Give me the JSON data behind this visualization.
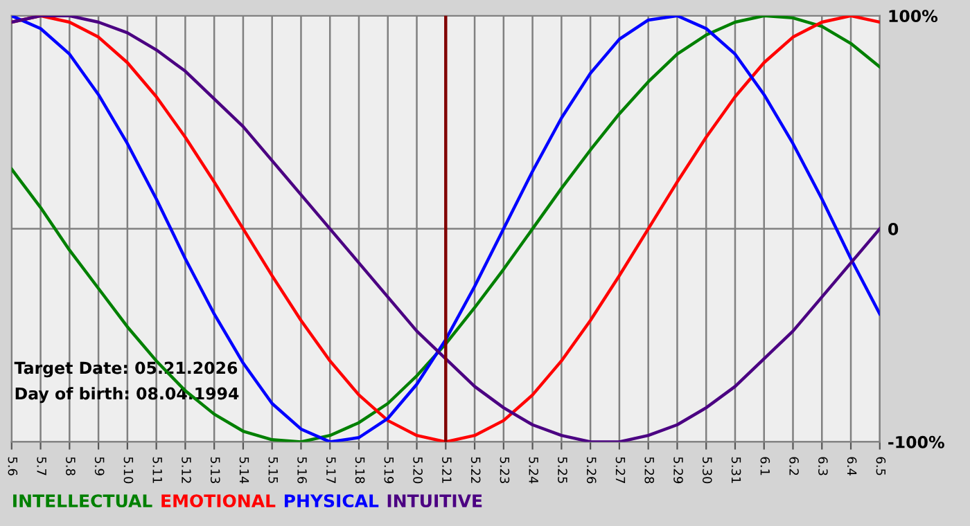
{
  "chart_data": {
    "type": "line",
    "categories": [
      "5.6",
      "5.7",
      "5.8",
      "5.9",
      "5.10",
      "5.11",
      "5.12",
      "5.13",
      "5.14",
      "5.15",
      "5.16",
      "5.17",
      "5.18",
      "5.19",
      "5.20",
      "5.21",
      "5.22",
      "5.23",
      "5.24",
      "5.25",
      "5.26",
      "5.27",
      "5.28",
      "5.29",
      "5.30",
      "5.31",
      "6.1",
      "6.2",
      "6.3",
      "6.4",
      "6.5"
    ],
    "series": [
      {
        "name": "INTELLECTUAL",
        "color": "#008000",
        "values": [
          28,
          10,
          -10,
          -28,
          -46,
          -62,
          -76,
          -87,
          -95,
          -99,
          -100,
          -97,
          -91,
          -82,
          -69,
          -54,
          -37,
          -19,
          0,
          19,
          37,
          54,
          69,
          82,
          91,
          97,
          100,
          99,
          95,
          87,
          76
        ]
      },
      {
        "name": "EMOTIONAL",
        "color": "#ff0000",
        "values": [
          97,
          100,
          97,
          90,
          78,
          62,
          43,
          22,
          0,
          -22,
          -43,
          -62,
          -78,
          -90,
          -97,
          -100,
          -97,
          -90,
          -78,
          -62,
          -43,
          -22,
          0,
          22,
          43,
          62,
          78,
          90,
          97,
          100,
          97
        ]
      },
      {
        "name": "PHYSICAL",
        "color": "#0000ff",
        "values": [
          100,
          94,
          82,
          63,
          40,
          14,
          -14,
          -40,
          -63,
          -82,
          -94,
          -100,
          -98,
          -89,
          -73,
          -52,
          -27,
          0,
          27,
          52,
          73,
          89,
          98,
          100,
          94,
          82,
          63,
          40,
          14,
          -14,
          -40
        ]
      },
      {
        "name": "INTUITIVE",
        "color": "#4b0082",
        "values": [
          97,
          100,
          100,
          97,
          92,
          84,
          74,
          61,
          48,
          32,
          16,
          0,
          -16,
          -32,
          -48,
          -61,
          -74,
          -84,
          -92,
          -97,
          -100,
          -100,
          -97,
          -92,
          -84,
          -74,
          -61,
          -48,
          -32,
          -16,
          0
        ]
      }
    ],
    "ylim": [
      -100,
      100
    ],
    "yticks": [
      {
        "value": 100,
        "label": "100%"
      },
      0,
      {
        "value": -100,
        "label": "-100%"
      }
    ],
    "ref_lines": [
      {
        "axis": "x",
        "value": "5.21",
        "color": "#800000"
      }
    ],
    "annotations": [
      "Target Date: 05.21.2026",
      "Day of birth: 08.04.1994"
    ],
    "grid": true,
    "legend": "bottom",
    "marker": "none",
    "line_style": "solid"
  }
}
